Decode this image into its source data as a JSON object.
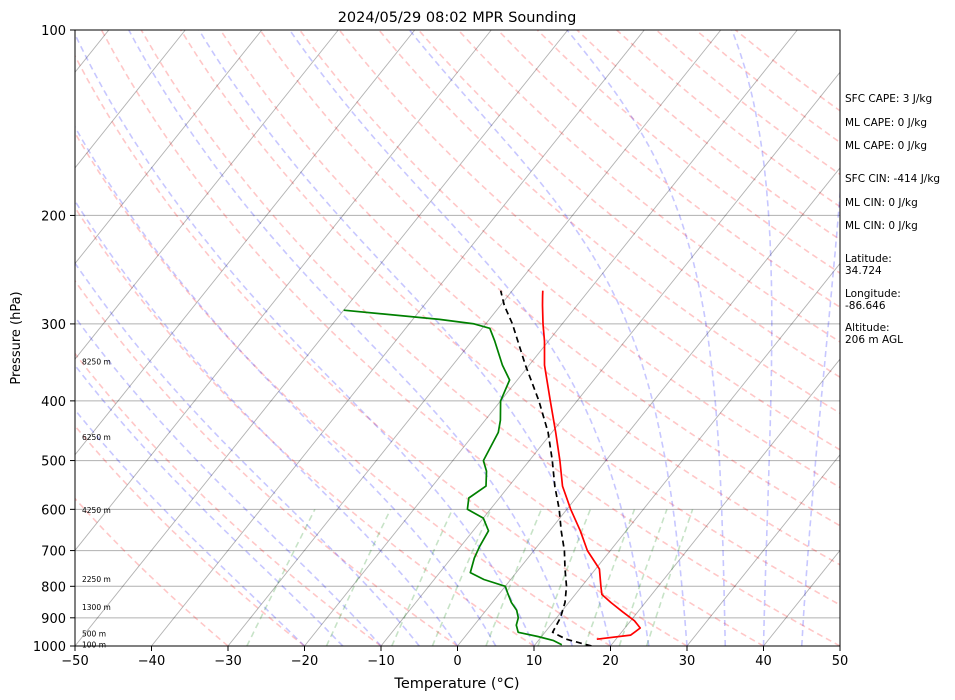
{
  "chart_data": {
    "type": "line",
    "title": "2024/05/29 08:02 MPR Sounding",
    "xlabel": "Temperature (°C)",
    "ylabel": "Pressure (hPa)",
    "xlim": [
      -50,
      50
    ],
    "ylim": [
      1000,
      100
    ],
    "y_scale": "log",
    "x_ticks": [
      -50,
      -40,
      -30,
      -20,
      -10,
      0,
      10,
      20,
      30,
      40,
      50
    ],
    "x_tick_labels": [
      "−50",
      "−40",
      "−30",
      "−20",
      "−10",
      "0",
      "10",
      "20",
      "30",
      "40",
      "50"
    ],
    "y_ticks": [
      1000,
      900,
      800,
      700,
      600,
      500,
      400,
      300,
      200,
      100
    ],
    "grid": true,
    "skew": "skew-T",
    "series": [
      {
        "color": "#ff0000",
        "style": "solid",
        "points": [
          [
            975,
            17.5
          ],
          [
            960,
            21.5
          ],
          [
            935,
            22.0
          ],
          [
            910,
            20.5
          ],
          [
            880,
            18.0
          ],
          [
            850,
            15.5
          ],
          [
            825,
            13.5
          ],
          [
            800,
            12.5
          ],
          [
            750,
            10.5
          ],
          [
            700,
            7.0
          ],
          [
            650,
            4.0
          ],
          [
            600,
            0.5
          ],
          [
            550,
            -3.0
          ],
          [
            500,
            -6.0
          ],
          [
            450,
            -9.5
          ],
          [
            400,
            -13.5
          ],
          [
            350,
            -18.0
          ],
          [
            320,
            -20.5
          ],
          [
            300,
            -22.5
          ],
          [
            280,
            -24.5
          ],
          [
            270,
            -25.5
          ],
          [
            265,
            -26.0
          ]
        ]
      },
      {
        "color": "#008000",
        "style": "solid",
        "points": [
          [
            995,
            13.5
          ],
          [
            980,
            12.0
          ],
          [
            965,
            9.5
          ],
          [
            950,
            6.5
          ],
          [
            925,
            5.5
          ],
          [
            900,
            5.0
          ],
          [
            875,
            4.0
          ],
          [
            850,
            2.5
          ],
          [
            820,
            1.0
          ],
          [
            800,
            0.0
          ],
          [
            780,
            -3.5
          ],
          [
            760,
            -6.0
          ],
          [
            720,
            -7.0
          ],
          [
            690,
            -7.5
          ],
          [
            650,
            -8.0
          ],
          [
            620,
            -10.0
          ],
          [
            600,
            -13.0
          ],
          [
            575,
            -14.0
          ],
          [
            550,
            -13.0
          ],
          [
            520,
            -14.5
          ],
          [
            500,
            -16.0
          ],
          [
            450,
            -17.0
          ],
          [
            430,
            -18.0
          ],
          [
            400,
            -20.0
          ],
          [
            370,
            -21.0
          ],
          [
            350,
            -23.5
          ],
          [
            320,
            -27.0
          ],
          [
            305,
            -29.0
          ],
          [
            300,
            -31.5
          ],
          [
            295,
            -36.5
          ],
          [
            285,
            -50.0
          ]
        ]
      },
      {
        "color": "#000000",
        "style": "dashed",
        "points": [
          [
            1000,
            17.5
          ],
          [
            975,
            13.5
          ],
          [
            950,
            11.0
          ],
          [
            900,
            10.5
          ],
          [
            850,
            9.5
          ],
          [
            800,
            8.0
          ],
          [
            750,
            6.0
          ],
          [
            700,
            4.0
          ],
          [
            650,
            1.5
          ],
          [
            600,
            -1.0
          ],
          [
            550,
            -4.0
          ],
          [
            500,
            -7.0
          ],
          [
            450,
            -10.5
          ],
          [
            400,
            -15.0
          ],
          [
            350,
            -20.5
          ],
          [
            300,
            -26.5
          ],
          [
            280,
            -29.5
          ],
          [
            265,
            -31.5
          ]
        ]
      }
    ],
    "height_labels": [
      {
        "text": "100 m",
        "p": 995
      },
      {
        "text": "500 m",
        "p": 955
      },
      {
        "text": "1300 m",
        "p": 865
      },
      {
        "text": "2250 m",
        "p": 778
      },
      {
        "text": "4250 m",
        "p": 602
      },
      {
        "text": "6250 m",
        "p": 458
      },
      {
        "text": "8250 m",
        "p": 345
      }
    ],
    "background_lines": {
      "isotherm_color": "#000000",
      "dry_adiabat_color": "#ff0000",
      "moist_adiabat_color": "#0000ff",
      "mixing_ratio_color": "#008000"
    }
  },
  "side_panel": {
    "sfc_cape": "SFC CAPE: 3 J/kg",
    "ml_cape_1": "ML CAPE: 0 J/kg",
    "ml_cape_2": "ML CAPE: 0 J/kg",
    "sfc_cin": "SFC CIN: -414 J/kg",
    "ml_cin_1": "ML CIN: 0 J/kg",
    "ml_cin_2": "ML CIN: 0 J/kg",
    "latitude": "Latitude:\n34.724",
    "longitude": "Longitude:\n-86.646",
    "altitude": "Altitude:\n206 m AGL"
  }
}
